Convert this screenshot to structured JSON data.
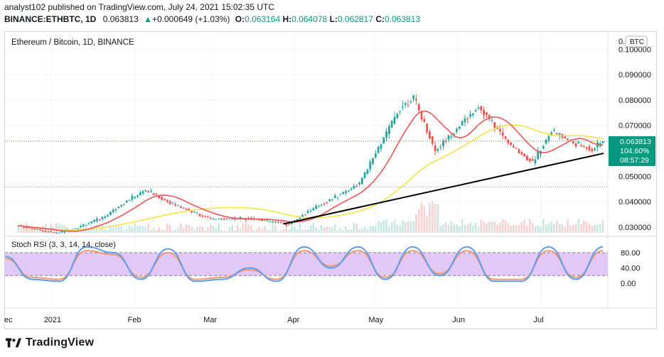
{
  "header": {
    "published": "analyst102 published on TradingView.com, July 24, 2021 15:02:35 UTC",
    "symbol": "BINANCE:ETHBTC, 1D",
    "last": "0.063813",
    "arrow": "▲",
    "change": "+0.000649 (+1.03%)",
    "o_label": "O:",
    "o_val": "0.063164",
    "h_label": "H:",
    "h_val": "0.064078",
    "l_label": "L:",
    "l_val": "0.062817",
    "c_label": "C:",
    "c_val": "0.063813"
  },
  "chart": {
    "title": "Ethereum / Bitcoin, 1D, BINANCE",
    "currency_badge": "BTC",
    "price_ticks": [
      "0.100000",
      "0.090000",
      "0.080000",
      "0.070000",
      "0.050000",
      "0.040000",
      "0.030000"
    ],
    "price_tick_values": [
      0.1,
      0.09,
      0.08,
      0.07,
      0.05,
      0.04,
      0.03
    ],
    "last_price_label": "0.063813",
    "percent_label": "104.60%",
    "countdown_label": "08:57:29",
    "rsi_title": "Stoch RSI (3, 3, 14, 14, close)",
    "rsi_ticks": [
      "80.00",
      "40.00",
      "0.00"
    ],
    "rsi_tick_values": [
      80,
      40,
      0
    ],
    "x_labels": [
      "ec",
      "2021",
      "Feb",
      "Mar",
      "Apr",
      "May",
      "Jun",
      "Jul"
    ],
    "colors": {
      "up": "#26a69a",
      "down": "#ef5350",
      "ma_fast": "#f05454",
      "ma_slow": "#f5e34a",
      "trend": "#000000",
      "k": "#5b9cf6",
      "d": "#f2966c",
      "rsi_band": "#e1c8f7",
      "badge": "#089981"
    }
  },
  "chart_data": {
    "type": "candlestick",
    "title": "Ethereum / Bitcoin, 1D, BINANCE",
    "x_labels": [
      "ec",
      "2021",
      "Feb",
      "Mar",
      "Apr",
      "May",
      "Jun",
      "Jul"
    ],
    "y_ticks": [
      0.03,
      0.04,
      0.05,
      0.07,
      0.08,
      0.09,
      0.1
    ],
    "ylim": [
      0.0277,
      0.106
    ],
    "key_points": [
      {
        "date": "2020-12-20",
        "close": 0.0305
      },
      {
        "date": "2021-01-03",
        "close": 0.0275
      },
      {
        "date": "2021-01-10",
        "close": 0.0295
      },
      {
        "date": "2021-01-20",
        "close": 0.0335
      },
      {
        "date": "2021-01-27",
        "close": 0.039
      },
      {
        "date": "2021-02-05",
        "close": 0.0445
      },
      {
        "date": "2021-02-14",
        "close": 0.0395
      },
      {
        "date": "2021-03-01",
        "close": 0.033
      },
      {
        "date": "2021-03-15",
        "close": 0.0335
      },
      {
        "date": "2021-03-30",
        "close": 0.031
      },
      {
        "date": "2021-04-05",
        "close": 0.0355
      },
      {
        "date": "2021-04-25",
        "close": 0.047
      },
      {
        "date": "2021-05-10",
        "close": 0.077
      },
      {
        "date": "2021-05-15",
        "close": 0.081
      },
      {
        "date": "2021-05-23",
        "close": 0.06
      },
      {
        "date": "2021-06-01",
        "close": 0.07
      },
      {
        "date": "2021-06-08",
        "close": 0.0775
      },
      {
        "date": "2021-06-20",
        "close": 0.062
      },
      {
        "date": "2021-06-28",
        "close": 0.0555
      },
      {
        "date": "2021-07-05",
        "close": 0.068
      },
      {
        "date": "2021-07-13",
        "close": 0.063
      },
      {
        "date": "2021-07-20",
        "close": 0.0605
      },
      {
        "date": "2021-07-24",
        "close": 0.063813
      }
    ],
    "series": [
      {
        "name": "Stoch RSI K",
        "values_approx": [
          70,
          10,
          5,
          95,
          80,
          10,
          90,
          5,
          10,
          40,
          5,
          95,
          40,
          95,
          10,
          95,
          20,
          95,
          5,
          5,
          95,
          10,
          95
        ]
      },
      {
        "name": "Stoch RSI D",
        "values_approx": [
          65,
          15,
          10,
          85,
          75,
          15,
          80,
          10,
          15,
          35,
          10,
          85,
          45,
          85,
          15,
          85,
          25,
          85,
          10,
          10,
          85,
          15,
          85
        ]
      }
    ],
    "last_price": 0.063813
  }
}
